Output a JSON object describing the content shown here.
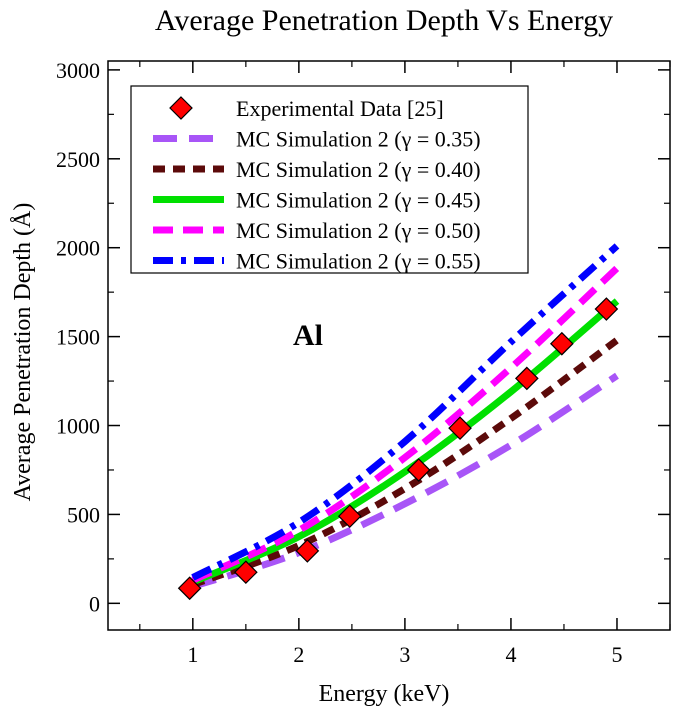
{
  "chart_data": {
    "type": "line",
    "title": "Average Penetration Depth Vs Energy",
    "xlabel": "Energy (keV)",
    "ylabel": "Average Penetration Depth (Å)",
    "xlim": [
      0.2,
      5.5
    ],
    "ylim": [
      -150,
      3050
    ],
    "xticks": [
      1,
      2,
      3,
      4,
      5
    ],
    "xtick_labels": [
      "1",
      "2",
      "3",
      "4",
      "5"
    ],
    "yticks": [
      0,
      500,
      1000,
      1500,
      2000,
      2500,
      3000
    ],
    "ytick_labels": [
      "0",
      "500",
      "1000",
      "1500",
      "2000",
      "2500",
      "3000"
    ],
    "grid": false,
    "legend_position": "top-left",
    "annotation": "Al",
    "scatter": {
      "name": "Experimental Data [25]",
      "color": "#ff0000",
      "marker": "diamond",
      "x": [
        0.97,
        1.5,
        2.08,
        2.48,
        3.13,
        3.52,
        4.15,
        4.48,
        4.9
      ],
      "y": [
        85,
        175,
        295,
        490,
        750,
        985,
        1265,
        1460,
        1655
      ]
    },
    "series": [
      {
        "name": "MC Simulation 2 (γ = 0.35)",
        "color": "#a855f7",
        "dash": "long-dash",
        "x": [
          1.0,
          2.0,
          3.0,
          4.0,
          5.0
        ],
        "y": [
          95,
          285,
          560,
          890,
          1280
        ]
      },
      {
        "name": "MC Simulation 2 (γ = 0.40)",
        "color": "#5c0a0a",
        "dash": "short-dash",
        "x": [
          1.0,
          2.0,
          3.0,
          4.0,
          5.0
        ],
        "y": [
          105,
          325,
          645,
          1040,
          1480
        ]
      },
      {
        "name": "MC Simulation 2 (γ = 0.45)",
        "color": "#00e000",
        "dash": "solid",
        "x": [
          1.0,
          2.0,
          3.0,
          4.0,
          5.0
        ],
        "y": [
          120,
          375,
          740,
          1190,
          1700
        ]
      },
      {
        "name": "MC Simulation 2 (γ = 0.50)",
        "color": "#ff00ff",
        "dash": "dash",
        "x": [
          1.0,
          2.0,
          3.0,
          4.0,
          5.0
        ],
        "y": [
          130,
          410,
          820,
          1325,
          1885
        ]
      },
      {
        "name": "MC Simulation 2 (γ = 0.55)",
        "color": "#0000ff",
        "dash": "dash-dot",
        "x": [
          1.0,
          2.0,
          3.0,
          4.0,
          5.0
        ],
        "y": [
          145,
          455,
          910,
          1470,
          2010
        ]
      }
    ]
  }
}
